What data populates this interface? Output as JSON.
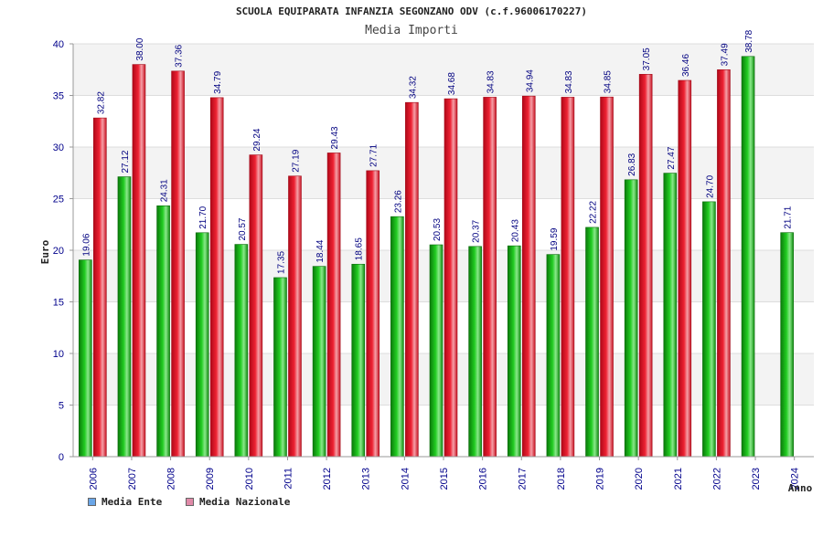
{
  "chart_data": {
    "type": "bar",
    "title": "SCUOLA EQUIPARATA INFANZIA SEGONZANO ODV (c.f.96006170227)",
    "subtitle": "Media Importi",
    "xlabel": "Anno",
    "ylabel": "Euro",
    "ylim": [
      0,
      40
    ],
    "yticks": [
      0,
      5,
      10,
      15,
      20,
      25,
      30,
      35,
      40
    ],
    "grid": true,
    "legend_position": "bottom-left",
    "categories": [
      "2006",
      "2007",
      "2008",
      "2009",
      "2010",
      "2011",
      "2012",
      "2013",
      "2014",
      "2015",
      "2016",
      "2017",
      "2018",
      "2019",
      "2020",
      "2021",
      "2022",
      "2023",
      "2024"
    ],
    "series": [
      {
        "name": "Media Ente",
        "legend_color": "#6aa6e8",
        "bar_color": "#22bb22",
        "values": [
          19.06,
          27.12,
          24.31,
          21.7,
          20.57,
          17.35,
          18.44,
          18.65,
          23.26,
          20.53,
          20.37,
          20.43,
          19.59,
          22.22,
          26.83,
          27.47,
          24.7,
          38.78,
          21.71
        ],
        "labels": [
          "19.06",
          "27.12",
          "24.31",
          "21.70",
          "20.57",
          "17.35",
          "18.44",
          "18.65",
          "23.26",
          "20.53",
          "20.37",
          "20.43",
          "19.59",
          "22.22",
          "26.83",
          "27.47",
          "24.70",
          "38.78",
          "21.71"
        ]
      },
      {
        "name": "Media Nazionale",
        "legend_color": "#e08aa8",
        "bar_color": "#ee2233",
        "values": [
          32.82,
          38.0,
          37.36,
          34.79,
          29.24,
          27.19,
          29.43,
          27.71,
          34.32,
          34.68,
          34.83,
          34.94,
          34.83,
          34.85,
          37.05,
          36.46,
          37.49,
          null,
          null
        ],
        "labels": [
          "32.82",
          "38.00",
          "37.36",
          "34.79",
          "29.24",
          "27.19",
          "29.43",
          "27.71",
          "34.32",
          "34.68",
          "34.83",
          "34.94",
          "34.83",
          "34.85",
          "37.05",
          "36.46",
          "37.49",
          null,
          null
        ]
      }
    ]
  }
}
